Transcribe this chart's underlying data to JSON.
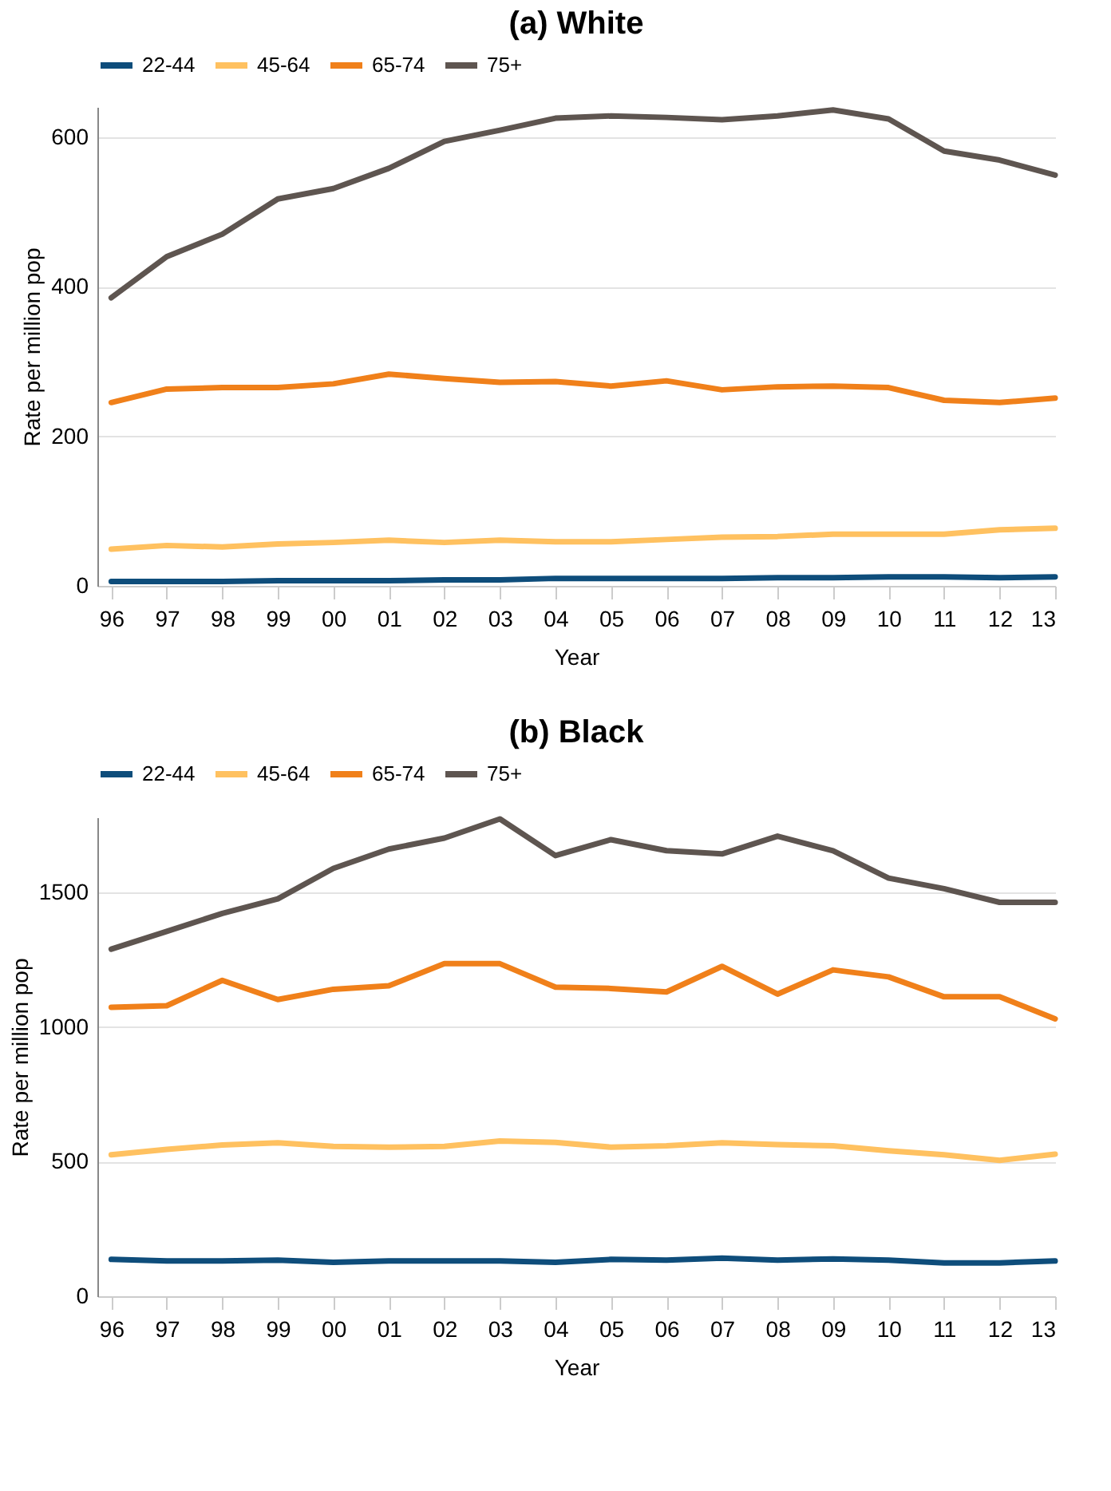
{
  "chart_data": [
    {
      "type": "line",
      "title": "(a) White",
      "xlabel": "Year",
      "ylabel": "Rate per million pop",
      "categories": [
        "96",
        "97",
        "98",
        "99",
        "00",
        "01",
        "02",
        "03",
        "04",
        "05",
        "06",
        "07",
        "08",
        "09",
        "10",
        "11",
        "12",
        "13"
      ],
      "series": [
        {
          "name": "22-44",
          "color": "#0e4d7b",
          "values": [
            6,
            6,
            6,
            7,
            7,
            7,
            8,
            8,
            10,
            10,
            10,
            10,
            11,
            11,
            12,
            12,
            11,
            12
          ]
        },
        {
          "name": "45-64",
          "color": "#ffc160",
          "values": [
            49,
            54,
            52,
            56,
            58,
            61,
            58,
            61,
            59,
            59,
            62,
            65,
            66,
            69,
            69,
            69,
            75,
            77
          ]
        },
        {
          "name": "65-74",
          "color": "#f0801a",
          "values": [
            245,
            263,
            265,
            265,
            270,
            283,
            277,
            272,
            273,
            267,
            274,
            262,
            266,
            267,
            265,
            248,
            245,
            251
          ]
        },
        {
          "name": "75+",
          "color": "#5e5550",
          "values": [
            385,
            440,
            470,
            517,
            531,
            558,
            594,
            609,
            625,
            628,
            626,
            623,
            628,
            636,
            624,
            581,
            569,
            549
          ]
        }
      ],
      "ylim": [
        0,
        640
      ],
      "yticks": [
        0,
        200,
        400,
        600
      ],
      "grid": "y",
      "legend": "top"
    },
    {
      "type": "line",
      "title": "(b) Black",
      "xlabel": "Year",
      "ylabel": "Rate per million pop",
      "categories": [
        "96",
        "97",
        "98",
        "99",
        "00",
        "01",
        "02",
        "03",
        "04",
        "05",
        "06",
        "07",
        "08",
        "09",
        "10",
        "11",
        "12",
        "13"
      ],
      "series": [
        {
          "name": "22-44",
          "color": "#0e4d7b",
          "values": [
            137,
            131,
            131,
            134,
            126,
            131,
            131,
            131,
            126,
            137,
            134,
            142,
            134,
            139,
            134,
            124,
            124,
            131
          ]
        },
        {
          "name": "45-64",
          "color": "#ffc160",
          "values": [
            526,
            546,
            562,
            570,
            557,
            554,
            557,
            577,
            572,
            554,
            559,
            570,
            564,
            559,
            541,
            526,
            505,
            528
          ]
        },
        {
          "name": "65-74",
          "color": "#f0801a",
          "values": [
            1074,
            1080,
            1174,
            1103,
            1141,
            1154,
            1236,
            1236,
            1149,
            1144,
            1131,
            1226,
            1123,
            1213,
            1187,
            1113,
            1113,
            1031
          ]
        },
        {
          "name": "75+",
          "color": "#5e5550",
          "values": [
            1290,
            1356,
            1423,
            1477,
            1590,
            1662,
            1703,
            1774,
            1638,
            1697,
            1656,
            1644,
            1710,
            1656,
            1554,
            1515,
            1464,
            1464
          ]
        }
      ],
      "ylim": [
        0,
        1780
      ],
      "yticks": [
        0,
        500,
        1000,
        1500
      ],
      "grid": "y",
      "legend": "top"
    }
  ]
}
